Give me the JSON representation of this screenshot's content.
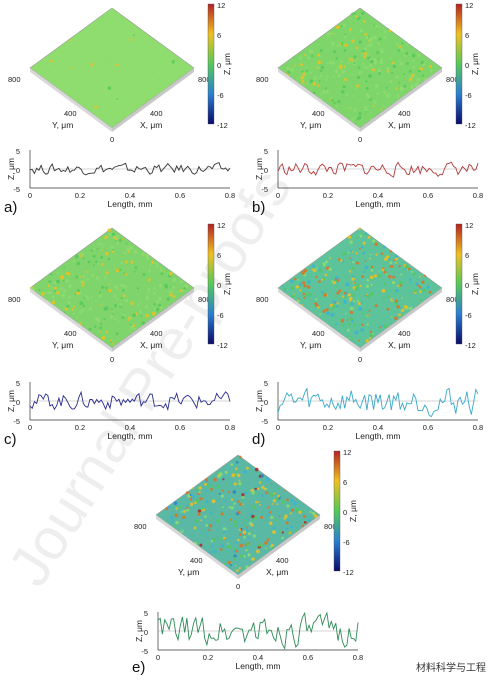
{
  "watermark": "Journal Pre-proofs",
  "credit": "材料科学与工程",
  "panel_labels": [
    "a)",
    "b)",
    "c)",
    "d)",
    "e)"
  ],
  "colorbar": {
    "ticks": [
      "12",
      "6",
      "0",
      "-6",
      "-12"
    ],
    "title": "Z, μm"
  },
  "surface_axes": {
    "y_title": "Y, μm",
    "x_title": "X, μm",
    "corner": "800",
    "mid": "400",
    "zero": "0"
  },
  "profile_axes": {
    "xlabel": "Length, mm",
    "ylabel": "Z, μm",
    "xticks": [
      "0",
      "0.2",
      "0.4",
      "0.6",
      "0.8"
    ]
  },
  "chart_data": [
    {
      "type": "line",
      "panel": "a)",
      "color": "#333333",
      "ylim": [
        -5,
        5
      ],
      "yticks": [
        "5",
        "0",
        "-5"
      ],
      "amplitude": 1.2,
      "seed": 1,
      "surface_roughness": 0.15,
      "surface_base": "#8fdc6f"
    },
    {
      "type": "line",
      "panel": "b)",
      "color": "#b23a3a",
      "ylim": [
        -5,
        5
      ],
      "yticks": [
        "5",
        "0",
        "-5"
      ],
      "amplitude": 1.6,
      "seed": 2,
      "surface_roughness": 0.25,
      "surface_base": "#7ed66a"
    },
    {
      "type": "line",
      "panel": "c)",
      "color": "#2a2a8c",
      "ylim": [
        -5,
        5
      ],
      "yticks": [
        "5",
        "0",
        "-5"
      ],
      "amplitude": 2.0,
      "seed": 3,
      "surface_roughness": 0.3,
      "surface_base": "#80d46c"
    },
    {
      "type": "line",
      "panel": "d)",
      "color": "#3aa9c9",
      "ylim": [
        -5,
        5
      ],
      "yticks": [
        "5",
        "0",
        "-5"
      ],
      "amplitude": 3.2,
      "seed": 4,
      "surface_roughness": 0.7,
      "surface_base": "#5cc39a"
    },
    {
      "type": "line",
      "panel": "e)",
      "color": "#2e8b57",
      "ylim": [
        -5,
        5
      ],
      "yticks": [
        "5",
        "0",
        "-5"
      ],
      "amplitude": 3.6,
      "seed": 5,
      "surface_roughness": 0.8,
      "surface_base": "#59b9a4"
    }
  ]
}
